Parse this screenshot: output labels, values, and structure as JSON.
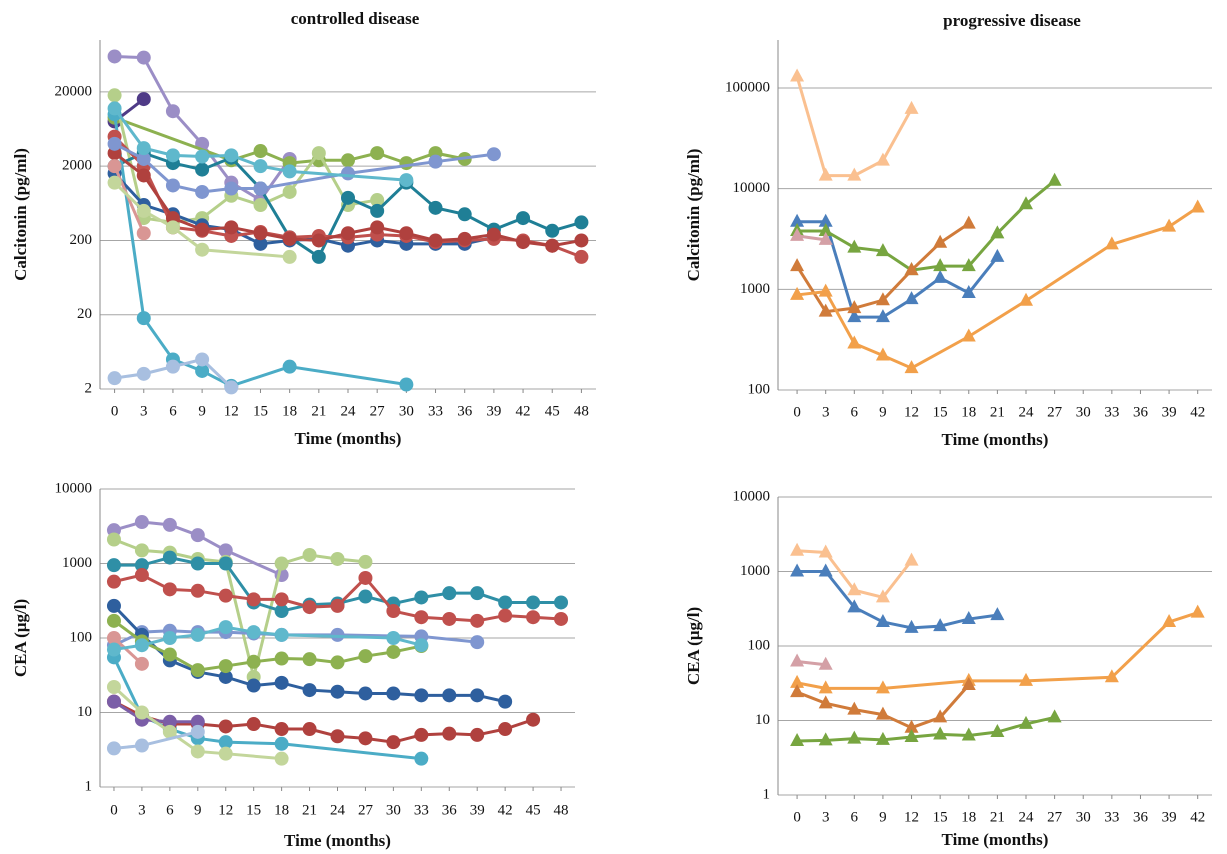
{
  "chart_data": [
    {
      "type": "line",
      "title": "controlled disease",
      "y_label": "Calcitonin (pg/ml)",
      "x_label": "Time (months)",
      "log_y": true,
      "grid": true,
      "marker": "circle",
      "xlim": [
        -1.5,
        49.5
      ],
      "ylim": [
        2,
        100000
      ],
      "xticks": [
        0,
        3,
        6,
        9,
        12,
        15,
        18,
        21,
        24,
        27,
        30,
        33,
        36,
        39,
        42,
        45,
        48
      ],
      "yticks": [
        2,
        20,
        200,
        2000,
        20000
      ],
      "series": [
        {
          "color": "#9b8ec6",
          "x": [
            0,
            3,
            6,
            9,
            12,
            15,
            18
          ],
          "values": [
            60000,
            58000,
            11000,
            4000,
            1200,
            700,
            2500
          ]
        },
        {
          "color": "#4f3b87",
          "x": [
            0,
            3
          ],
          "values": [
            8000,
            16000
          ]
        },
        {
          "color": "#8db150",
          "x": [
            0,
            12,
            15,
            18,
            21,
            24,
            27,
            30,
            33,
            36
          ],
          "values": [
            9000,
            2400,
            3200,
            2200,
            2400,
            2400,
            3000,
            2200,
            3000,
            2500
          ]
        },
        {
          "color": "#b5cf8a",
          "x": [
            0,
            3,
            6,
            9,
            12,
            15,
            18,
            21,
            24,
            27
          ],
          "values": [
            18000,
            400,
            350,
            400,
            800,
            600,
            900,
            3000,
            600,
            700
          ]
        },
        {
          "color": "#1f7f96",
          "x": [
            0,
            3,
            6,
            9,
            12,
            15,
            18,
            21,
            24,
            27,
            30,
            33,
            36,
            39,
            42,
            45,
            48
          ],
          "values": [
            2000,
            3000,
            2200,
            1800,
            2600,
            1000,
            220,
            120,
            750,
            500,
            1200,
            550,
            450,
            280,
            400,
            270,
            350
          ]
        },
        {
          "color": "#4bacc6",
          "x": [
            0,
            3,
            6,
            9,
            12,
            18,
            30
          ],
          "values": [
            10000,
            18,
            5,
            3.5,
            2.2,
            4,
            2.3
          ]
        },
        {
          "color": "#a8bfe0",
          "x": [
            0,
            3,
            6,
            9,
            12
          ],
          "values": [
            2.8,
            3.2,
            4,
            5,
            2.1
          ]
        },
        {
          "color": "#2e5f9e",
          "x": [
            0,
            3,
            6,
            9,
            12,
            15,
            18,
            21,
            24,
            27,
            30,
            33,
            36,
            39
          ],
          "values": [
            1600,
            600,
            450,
            320,
            280,
            180,
            200,
            210,
            170,
            200,
            180,
            180,
            180,
            220
          ]
        },
        {
          "color": "#c0504d",
          "x": [
            0,
            3,
            6,
            9,
            12,
            15,
            18,
            21,
            24,
            27,
            30,
            33,
            36,
            39,
            42,
            45,
            48
          ],
          "values": [
            5000,
            2000,
            300,
            270,
            230,
            260,
            220,
            230,
            220,
            240,
            230,
            190,
            200,
            210,
            200,
            170,
            120
          ]
        },
        {
          "color": "#b0413e",
          "x": [
            0,
            3,
            6,
            9,
            12,
            15,
            18,
            21,
            24,
            27,
            30,
            33,
            36,
            39,
            42,
            45,
            48
          ],
          "values": [
            3000,
            1500,
            400,
            280,
            300,
            250,
            210,
            200,
            250,
            300,
            250,
            200,
            210,
            240,
            190,
            170,
            200
          ]
        },
        {
          "color": "#d99694",
          "x": [
            0,
            3
          ],
          "values": [
            2000,
            250
          ]
        },
        {
          "color": "#c3d69b",
          "x": [
            0,
            3,
            6,
            9,
            18
          ],
          "values": [
            1200,
            500,
            300,
            150,
            120
          ]
        },
        {
          "color": "#7f96d0",
          "x": [
            0,
            3,
            6,
            9,
            12,
            15,
            24,
            33,
            39
          ],
          "values": [
            4000,
            2500,
            1100,
            900,
            1000,
            1000,
            1600,
            2300,
            2900
          ]
        },
        {
          "color": "#5fb8cc",
          "x": [
            0,
            3,
            6,
            9,
            12,
            15,
            18,
            30
          ],
          "values": [
            12000,
            3500,
            2800,
            2700,
            2800,
            2000,
            1700,
            1300
          ]
        }
      ]
    },
    {
      "type": "line",
      "title": "progressive disease",
      "y_label": "Calcitonin (pg/ml)",
      "x_label": "Time (months)",
      "log_y": true,
      "grid": true,
      "marker": "triangle",
      "xlim": [
        -2,
        43.5
      ],
      "ylim": [
        100,
        300000
      ],
      "xticks": [
        0,
        3,
        6,
        9,
        12,
        15,
        18,
        21,
        24,
        27,
        30,
        33,
        36,
        39,
        42
      ],
      "yticks": [
        100,
        1000,
        10000,
        100000
      ],
      "series": [
        {
          "color": "#fac090",
          "x": [
            0,
            3,
            6,
            9,
            12
          ],
          "values": [
            130000,
            13500,
            13500,
            19000,
            62000
          ]
        },
        {
          "color": "#4a7ebb",
          "x": [
            0,
            3,
            6,
            9,
            12,
            15,
            18,
            21
          ],
          "values": [
            4700,
            4700,
            530,
            530,
            800,
            1300,
            920,
            2100
          ]
        },
        {
          "color": "#77a540",
          "x": [
            0,
            3,
            6,
            9,
            12,
            15,
            18,
            21,
            24,
            27
          ],
          "values": [
            3800,
            3800,
            2600,
            2400,
            1550,
            1700,
            1700,
            3600,
            7000,
            12000
          ]
        },
        {
          "color": "#d4a0a6",
          "x": [
            0,
            3
          ],
          "values": [
            3400,
            3100
          ]
        },
        {
          "color": "#d07b3a",
          "x": [
            0,
            3,
            6,
            9,
            12,
            15,
            18
          ],
          "values": [
            1700,
            600,
            650,
            780,
            1550,
            2900,
            4500
          ]
        },
        {
          "color": "#f2a04a",
          "x": [
            0,
            3,
            6,
            9,
            12,
            18,
            24,
            33,
            39,
            42
          ],
          "values": [
            880,
            950,
            290,
            220,
            165,
            340,
            770,
            2800,
            4200,
            6500
          ]
        }
      ]
    },
    {
      "type": "line",
      "y_label": "CEA (µg/l)",
      "x_label": "Time (months)",
      "log_y": true,
      "grid": true,
      "marker": "circle",
      "xlim": [
        -1.5,
        49.5
      ],
      "ylim": [
        1,
        10000
      ],
      "xticks": [
        0,
        3,
        6,
        9,
        12,
        15,
        18,
        21,
        24,
        27,
        30,
        33,
        36,
        39,
        42,
        45,
        48
      ],
      "yticks": [
        1,
        10,
        100,
        1000,
        10000
      ],
      "series": [
        {
          "color": "#9b8ec6",
          "x": [
            0,
            3,
            6,
            9,
            12,
            18
          ],
          "values": [
            2800,
            3600,
            3300,
            2400,
            1500,
            700
          ]
        },
        {
          "color": "#b5cf8a",
          "x": [
            0,
            3,
            6,
            9,
            12,
            15,
            18,
            21,
            24,
            27
          ],
          "values": [
            2100,
            1500,
            1400,
            1150,
            1050,
            30,
            1000,
            1300,
            1150,
            1050
          ]
        },
        {
          "color": "#2f8fa6",
          "x": [
            0,
            3,
            6,
            9,
            12,
            15,
            18,
            21,
            24,
            27,
            30,
            33,
            36,
            39,
            42,
            45,
            48
          ],
          "values": [
            950,
            950,
            1200,
            1000,
            1000,
            300,
            230,
            280,
            290,
            360,
            290,
            350,
            400,
            400,
            300,
            300,
            300
          ]
        },
        {
          "color": "#c0504d",
          "x": [
            0,
            3,
            6,
            9,
            12,
            15,
            18,
            21,
            24,
            27,
            30,
            33,
            36,
            39,
            42,
            45,
            48
          ],
          "values": [
            570,
            700,
            450,
            430,
            370,
            330,
            330,
            260,
            270,
            640,
            230,
            190,
            180,
            170,
            200,
            190,
            180
          ]
        },
        {
          "color": "#7f96d0",
          "x": [
            0,
            3,
            6,
            9,
            12,
            15,
            18,
            24,
            33,
            39
          ],
          "values": [
            80,
            120,
            125,
            120,
            120,
            115,
            110,
            110,
            105,
            88
          ]
        },
        {
          "color": "#2e5f9e",
          "x": [
            0,
            3,
            6,
            9,
            12,
            15,
            18,
            21,
            24,
            27,
            30,
            33,
            36,
            39,
            42
          ],
          "values": [
            270,
            110,
            50,
            35,
            30,
            23,
            25,
            20,
            19,
            18,
            18,
            17,
            17,
            17,
            14
          ]
        },
        {
          "color": "#8db150",
          "x": [
            0,
            3,
            6,
            9,
            12,
            15,
            18,
            21,
            24,
            27,
            30,
            33
          ],
          "values": [
            170,
            90,
            60,
            37,
            42,
            48,
            53,
            52,
            47,
            57,
            65,
            78
          ]
        },
        {
          "color": "#4bacc6",
          "x": [
            0,
            3,
            6,
            9,
            12,
            18,
            33
          ],
          "values": [
            55,
            9,
            6,
            4.5,
            4,
            3.8,
            2.4
          ]
        },
        {
          "color": "#b0413e",
          "x": [
            0,
            3,
            6,
            9,
            12,
            15,
            18,
            21,
            24,
            27,
            30,
            33,
            36,
            39,
            42,
            45
          ],
          "values": [
            14,
            9,
            7,
            7,
            6.5,
            7,
            6,
            6,
            4.8,
            4.5,
            4,
            5,
            5.2,
            5,
            6,
            8
          ]
        },
        {
          "color": "#7b5ea7",
          "x": [
            0,
            3,
            6,
            9
          ],
          "values": [
            14,
            8,
            7.5,
            7.5
          ]
        },
        {
          "color": "#d99694",
          "x": [
            0,
            3
          ],
          "values": [
            100,
            45
          ]
        },
        {
          "color": "#c3d69b",
          "x": [
            0,
            3,
            6,
            9,
            12,
            18
          ],
          "values": [
            22,
            10,
            5.5,
            3,
            2.8,
            2.4
          ]
        },
        {
          "color": "#a8bfe0",
          "x": [
            0,
            3,
            9
          ],
          "values": [
            3.3,
            3.6,
            5.5
          ]
        },
        {
          "color": "#5fb8cc",
          "x": [
            0,
            3,
            6,
            9,
            12,
            15,
            18,
            30,
            33
          ],
          "values": [
            70,
            80,
            100,
            110,
            140,
            120,
            110,
            100,
            80
          ]
        }
      ]
    },
    {
      "type": "line",
      "y_label": "CEA (µg/l)",
      "x_label": "Time (months)",
      "log_y": true,
      "grid": true,
      "marker": "triangle",
      "xlim": [
        -2,
        43.5
      ],
      "ylim": [
        1,
        10000
      ],
      "xticks": [
        0,
        3,
        6,
        9,
        12,
        15,
        18,
        21,
        24,
        27,
        30,
        33,
        36,
        39,
        42
      ],
      "yticks": [
        1,
        10,
        100,
        1000,
        10000
      ],
      "series": [
        {
          "color": "#fac090",
          "x": [
            0,
            3,
            6,
            9,
            12
          ],
          "values": [
            1900,
            1800,
            560,
            450,
            1400
          ]
        },
        {
          "color": "#4a7ebb",
          "x": [
            0,
            3,
            6,
            9,
            12,
            15,
            18,
            21
          ],
          "values": [
            1000,
            1000,
            330,
            210,
            175,
            185,
            230,
            260
          ]
        },
        {
          "color": "#d4a0a6",
          "x": [
            0,
            3
          ],
          "values": [
            62,
            56
          ]
        },
        {
          "color": "#f2a04a",
          "x": [
            0,
            3,
            9,
            18,
            24,
            33,
            39,
            42
          ],
          "values": [
            32,
            27,
            27,
            34,
            34,
            38,
            210,
            280
          ]
        },
        {
          "color": "#d07b3a",
          "x": [
            0,
            3,
            6,
            9,
            12,
            15,
            18
          ],
          "values": [
            24,
            17,
            14,
            12,
            8,
            11,
            30
          ]
        },
        {
          "color": "#77a540",
          "x": [
            0,
            3,
            6,
            9,
            12,
            15,
            18,
            21,
            24,
            27
          ],
          "values": [
            5.3,
            5.4,
            5.7,
            5.5,
            6,
            6.5,
            6.3,
            7,
            9,
            11
          ]
        }
      ]
    }
  ]
}
